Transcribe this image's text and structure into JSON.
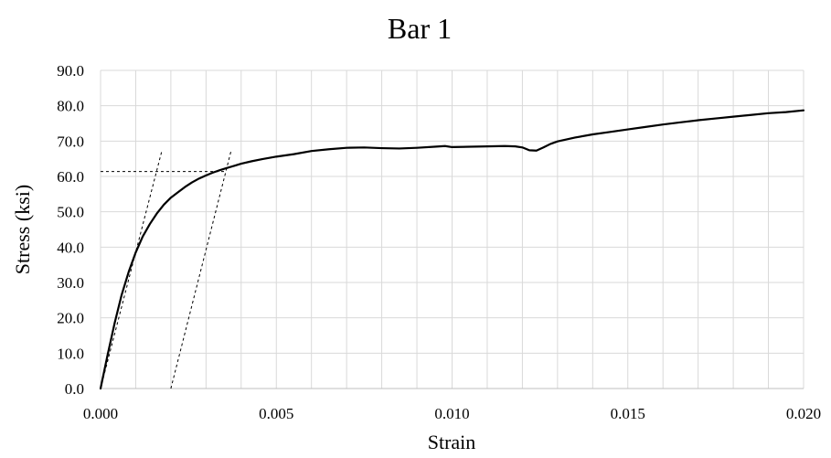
{
  "chart_data": {
    "type": "line",
    "title": "Bar 1",
    "xlabel": "Strain",
    "ylabel": "Stress (ksi)",
    "xlim": [
      0.0,
      0.02
    ],
    "ylim": [
      0.0,
      90.0
    ],
    "x_ticks": [
      "0.000",
      "0.005",
      "0.010",
      "0.015",
      "0.020"
    ],
    "y_ticks": [
      "0.0",
      "10.0",
      "20.0",
      "30.0",
      "40.0",
      "50.0",
      "60.0",
      "70.0",
      "80.0",
      "90.0"
    ],
    "x_tick_values": [
      0.0,
      0.005,
      0.01,
      0.015,
      0.02
    ],
    "y_tick_values": [
      0,
      10,
      20,
      30,
      40,
      50,
      60,
      70,
      80,
      90
    ],
    "x_minor_grid_step": 0.001,
    "grid": true,
    "legend": "none",
    "series": [
      {
        "x": [
          0.0,
          0.0002,
          0.0004,
          0.0006,
          0.0008,
          0.001,
          0.0012,
          0.0014,
          0.0016,
          0.0018,
          0.002,
          0.0022,
          0.0024,
          0.0026,
          0.0028,
          0.003,
          0.0032,
          0.0034,
          0.0036,
          0.0038,
          0.004,
          0.0043,
          0.0046,
          0.005,
          0.0055,
          0.006,
          0.0065,
          0.007,
          0.0075,
          0.008,
          0.0085,
          0.009,
          0.0095,
          0.0098,
          0.01,
          0.0105,
          0.011,
          0.0115,
          0.0118,
          0.012,
          0.0122,
          0.0124,
          0.0126,
          0.0128,
          0.013,
          0.0135,
          0.014,
          0.0145,
          0.015,
          0.0155,
          0.016,
          0.0165,
          0.017,
          0.0175,
          0.018,
          0.0185,
          0.019,
          0.0195,
          0.02
        ],
        "y": [
          0.0,
          9.5,
          18.5,
          26.5,
          33.0,
          38.5,
          43.0,
          46.5,
          49.5,
          52.0,
          54.0,
          55.5,
          57.0,
          58.3,
          59.4,
          60.3,
          61.1,
          61.8,
          62.4,
          63.0,
          63.6,
          64.3,
          64.9,
          65.6,
          66.3,
          67.2,
          67.7,
          68.1,
          68.2,
          68.0,
          67.9,
          68.1,
          68.4,
          68.6,
          68.3,
          68.4,
          68.5,
          68.6,
          68.5,
          68.2,
          67.4,
          67.3,
          68.2,
          69.2,
          69.9,
          71.0,
          71.9,
          72.6,
          73.3,
          74.0,
          74.7,
          75.3,
          75.9,
          76.4,
          76.9,
          77.4,
          77.9,
          78.2,
          78.7
        ],
        "color": "#000000"
      }
    ],
    "reference_lines": [
      {
        "x": [
          0.0,
          0.00175
        ],
        "y": [
          0.0,
          67.5
        ],
        "style": "dashed"
      },
      {
        "x": [
          0.002,
          0.00372
        ],
        "y": [
          0.0,
          67.5
        ],
        "style": "dashed"
      },
      {
        "x": [
          0.0,
          0.00355
        ],
        "y": [
          61.4,
          61.4
        ],
        "style": "dashed"
      }
    ]
  }
}
